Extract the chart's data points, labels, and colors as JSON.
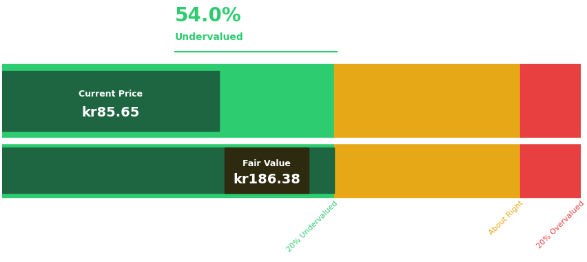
{
  "current_price": 85.65,
  "fair_value": 186.38,
  "undervalued_pct": 54.0,
  "currency": "kr",
  "segment_boundaries": [
    0.0,
    0.375,
    0.574,
    0.748,
    0.895,
    1.0
  ],
  "colors": {
    "dark_green": "#1e6641",
    "light_green": "#2ecc71",
    "yellow": "#e6a817",
    "red": "#e84040",
    "annotation_green": "#2ecc71",
    "fair_value_box": "#2d2a0f"
  },
  "label_pct": "54.0%",
  "label_undervalued": "Undervalued",
  "label_current_price": "Current Price",
  "label_fair_value": "Fair Value",
  "label_20pct_undervalued": "20% Undervalued",
  "label_about_right": "About Right",
  "label_20pct_overvalued": "20% Overvalued",
  "bg_color": "#ffffff",
  "fig_width": 8.53,
  "fig_height": 3.8
}
